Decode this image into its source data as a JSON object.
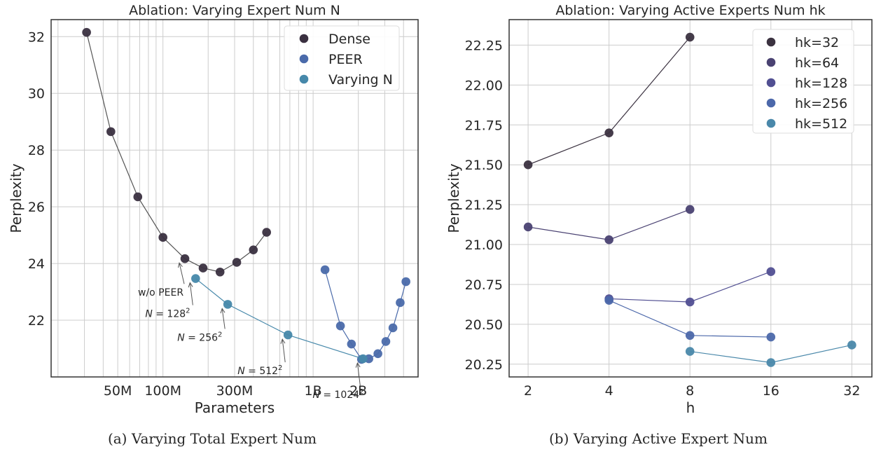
{
  "chart_data": [
    {
      "type": "scatter",
      "title": "Ablation: Varying Expert Num N",
      "xlabel": "Parameters",
      "ylabel": "Perplexity",
      "xscale": "log",
      "xlim": [
        18000000,
        5000000000
      ],
      "ylim": [
        20.0,
        32.6
      ],
      "xticks": [
        {
          "value": 50000000,
          "label": "50M"
        },
        {
          "value": 100000000,
          "label": "100M"
        },
        {
          "value": 300000000,
          "label": "300M"
        },
        {
          "value": 1000000000,
          "label": "1B"
        },
        {
          "value": 2000000000,
          "label": "2B"
        }
      ],
      "yticks": [
        {
          "value": 22,
          "label": "22"
        },
        {
          "value": 24,
          "label": "24"
        },
        {
          "value": 26,
          "label": "26"
        },
        {
          "value": 28,
          "label": "28"
        },
        {
          "value": 30,
          "label": "30"
        },
        {
          "value": 32,
          "label": "32"
        }
      ],
      "grid": true,
      "legend_position": "top-right",
      "series": [
        {
          "name": "Dense",
          "color": "#3a3040",
          "connected": true,
          "points": [
            {
              "x": 31000000,
              "y": 32.15
            },
            {
              "x": 45000000,
              "y": 28.65
            },
            {
              "x": 68000000,
              "y": 26.35
            },
            {
              "x": 100000000,
              "y": 24.92
            },
            {
              "x": 140000000,
              "y": 24.17
            },
            {
              "x": 185000000,
              "y": 23.84
            },
            {
              "x": 240000000,
              "y": 23.7
            },
            {
              "x": 310000000,
              "y": 24.04
            },
            {
              "x": 400000000,
              "y": 24.48
            },
            {
              "x": 490000000,
              "y": 25.1
            }
          ]
        },
        {
          "name": "PEER",
          "color": "#4a6aaa",
          "connected": true,
          "points": [
            {
              "x": 1200000000,
              "y": 23.78
            },
            {
              "x": 1520000000,
              "y": 21.8
            },
            {
              "x": 1800000000,
              "y": 21.16
            },
            {
              "x": 2100000000,
              "y": 20.62
            },
            {
              "x": 2350000000,
              "y": 20.64
            },
            {
              "x": 2700000000,
              "y": 20.82
            },
            {
              "x": 3050000000,
              "y": 21.25
            },
            {
              "x": 3400000000,
              "y": 21.73
            },
            {
              "x": 3800000000,
              "y": 22.62
            },
            {
              "x": 4150000000,
              "y": 23.36
            }
          ]
        },
        {
          "name": "Varying N",
          "color": "#4688aa",
          "connected": true,
          "points": [
            {
              "x": 165000000,
              "y": 23.47
            },
            {
              "x": 270000000,
              "y": 22.56
            },
            {
              "x": 680000000,
              "y": 21.48
            },
            {
              "x": 2150000000,
              "y": 20.64
            }
          ]
        }
      ],
      "annotations": [
        {
          "text": "w/o PEER",
          "x": 140000000,
          "y": 24.17
        },
        {
          "text": "N = 128²",
          "math": "N = 128",
          "sup": "2",
          "x": 165000000,
          "y": 23.47
        },
        {
          "text": "N = 256²",
          "math": "N = 256",
          "sup": "2",
          "x": 270000000,
          "y": 22.56
        },
        {
          "text": "N = 512²",
          "math": "N = 512",
          "sup": "2",
          "x": 680000000,
          "y": 21.48
        },
        {
          "text": "N = 1024²",
          "math": "N = 1024",
          "sup": "2",
          "x": 2150000000,
          "y": 20.64
        }
      ]
    },
    {
      "type": "scatter",
      "title": "Ablation: Varying Active Experts Num hk",
      "xlabel": "h",
      "ylabel": "Perplexity",
      "xscale": "log2",
      "xlim": [
        1.7,
        38
      ],
      "ylim": [
        20.17,
        22.41
      ],
      "xticks": [
        {
          "value": 2,
          "label": "2"
        },
        {
          "value": 4,
          "label": "4"
        },
        {
          "value": 8,
          "label": "8"
        },
        {
          "value": 16,
          "label": "16"
        },
        {
          "value": 32,
          "label": "32"
        }
      ],
      "yticks": [
        {
          "value": 20.25,
          "label": "20.25"
        },
        {
          "value": 20.5,
          "label": "20.50"
        },
        {
          "value": 20.75,
          "label": "20.75"
        },
        {
          "value": 21.0,
          "label": "21.00"
        },
        {
          "value": 21.25,
          "label": "21.25"
        },
        {
          "value": 21.5,
          "label": "21.50"
        },
        {
          "value": 21.75,
          "label": "21.75"
        },
        {
          "value": 22.0,
          "label": "22.00"
        },
        {
          "value": 22.25,
          "label": "22.25"
        }
      ],
      "grid": true,
      "legend_position": "top-right",
      "series": [
        {
          "name": "hk=32",
          "color": "#3b3240",
          "points": [
            {
              "x": 2,
              "y": 21.5
            },
            {
              "x": 4,
              "y": 21.7
            },
            {
              "x": 8,
              "y": 22.3
            }
          ]
        },
        {
          "name": "hk=64",
          "color": "#4a4272",
          "points": [
            {
              "x": 2,
              "y": 21.11
            },
            {
              "x": 4,
              "y": 21.03
            },
            {
              "x": 8,
              "y": 21.22
            }
          ]
        },
        {
          "name": "hk=128",
          "color": "#514f92",
          "points": [
            {
              "x": 4,
              "y": 20.66
            },
            {
              "x": 8,
              "y": 20.64
            },
            {
              "x": 16,
              "y": 20.83
            }
          ]
        },
        {
          "name": "hk=256",
          "color": "#4c68aa",
          "points": [
            {
              "x": 4,
              "y": 20.65
            },
            {
              "x": 8,
              "y": 20.43
            },
            {
              "x": 16,
              "y": 20.42
            }
          ]
        },
        {
          "name": "hk=512",
          "color": "#4a88aa",
          "points": [
            {
              "x": 8,
              "y": 20.33
            },
            {
              "x": 16,
              "y": 20.26
            },
            {
              "x": 32,
              "y": 20.37
            }
          ]
        }
      ]
    }
  ],
  "captions": {
    "left": "(a) Varying Total Expert Num",
    "right": "(b) Varying Active Expert Num"
  },
  "colors": {
    "grid": "#cccccc",
    "axes": "#333333",
    "line_dense": "#555555",
    "annotation_arrow": "#555555"
  }
}
